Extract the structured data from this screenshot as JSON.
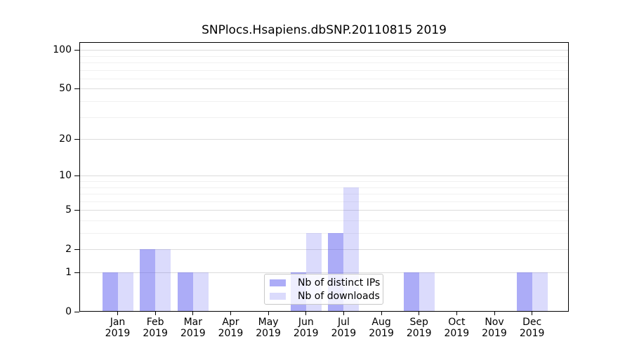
{
  "chart_data": {
    "type": "bar",
    "title": "SNPlocs.Hsapiens.dbSNP.20110815 2019",
    "year": "2019",
    "categories": [
      "Jan",
      "Feb",
      "Mar",
      "Apr",
      "May",
      "Jun",
      "Jul",
      "Aug",
      "Sep",
      "Oct",
      "Nov",
      "Dec"
    ],
    "series": [
      {
        "name": "Nb of distinct IPs",
        "color": "rgba(90,90,240,0.5)",
        "values": [
          1,
          2,
          1,
          0,
          0,
          1,
          3,
          0,
          1,
          0,
          0,
          1
        ]
      },
      {
        "name": "Nb of downloads",
        "color": "rgba(90,90,240,0.22)",
        "values": [
          1,
          2,
          1,
          0,
          0,
          3,
          8,
          0,
          1,
          0,
          0,
          1
        ]
      }
    ],
    "y_scale": "log1p",
    "y_ticks": [
      0,
      1,
      2,
      5,
      10,
      20,
      50,
      100
    ],
    "y_minor_ticks": [
      3,
      4,
      6,
      7,
      8,
      9,
      30,
      40,
      60,
      70,
      80,
      90
    ],
    "ylim": [
      0,
      115
    ],
    "grid": "horizontal",
    "legend_position": "bottom-center"
  },
  "colors": {
    "major_grid": "#dcdcdc",
    "minor_grid": "#f1f1f1",
    "axis": "#000000",
    "legend_border": "#c8c8c8",
    "background": "#ffffff"
  }
}
